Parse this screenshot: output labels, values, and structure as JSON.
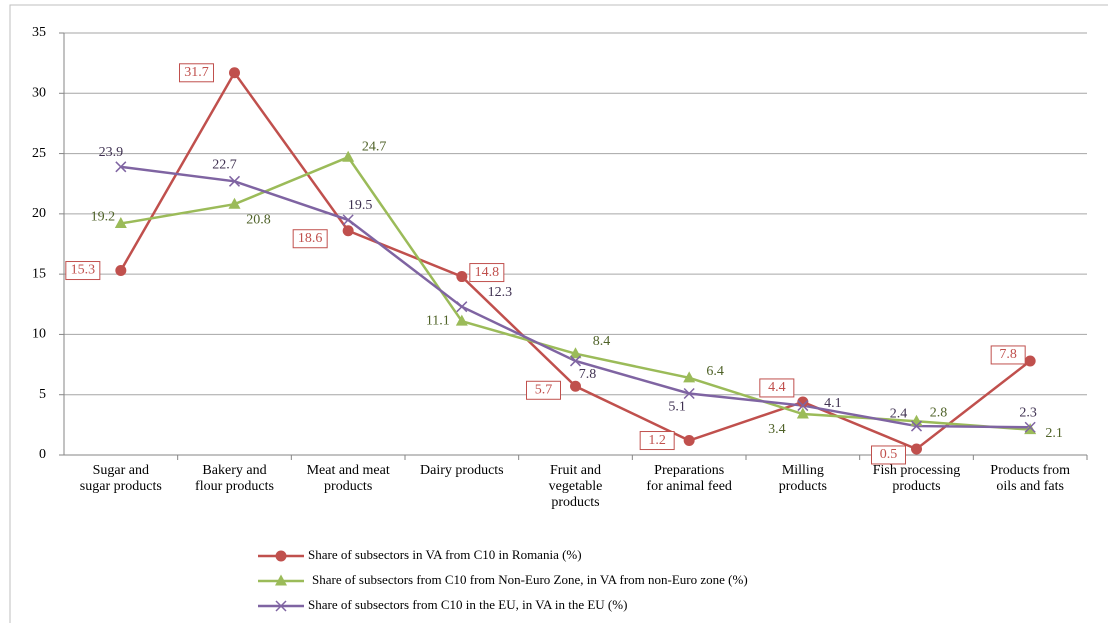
{
  "chart_data": {
    "type": "line",
    "categories": [
      "Sugar and\nsugar products",
      "Bakery and\nflour products",
      "Meat and meat\nproducts",
      "Dairy products",
      "Fruit and\nvegetable\nproducts",
      "Preparations\nfor animal feed",
      "Milling\nproducts",
      "Fish processing\nproducts",
      "Products from\noils and fats"
    ],
    "series": [
      {
        "name": "Share of subsectors in VA from C10 in Romania (%)",
        "color": "#c0504d",
        "marker": "circle",
        "values": [
          15.3,
          31.7,
          18.6,
          14.8,
          5.7,
          1.2,
          4.4,
          0.5,
          7.8
        ]
      },
      {
        "name": "Share of subsectors from C10 from Non-Euro Zone, in VA from non-Euro zone (%)",
        "color": "#9bbb59",
        "marker": "triangle",
        "values": [
          19.2,
          20.8,
          24.7,
          11.1,
          8.4,
          6.4,
          3.4,
          2.8,
          2.1
        ]
      },
      {
        "name": "Share of subsectors from C10 in the EU, in VA in the EU (%)",
        "color": "#7f64a2",
        "marker": "x",
        "values": [
          23.9,
          22.7,
          19.5,
          12.3,
          7.8,
          5.1,
          4.1,
          2.4,
          2.3
        ]
      }
    ],
    "ylim": [
      0,
      35
    ],
    "yticks": [
      0,
      5,
      10,
      15,
      20,
      25,
      30,
      35
    ],
    "grid": true,
    "legend": "bottom"
  }
}
